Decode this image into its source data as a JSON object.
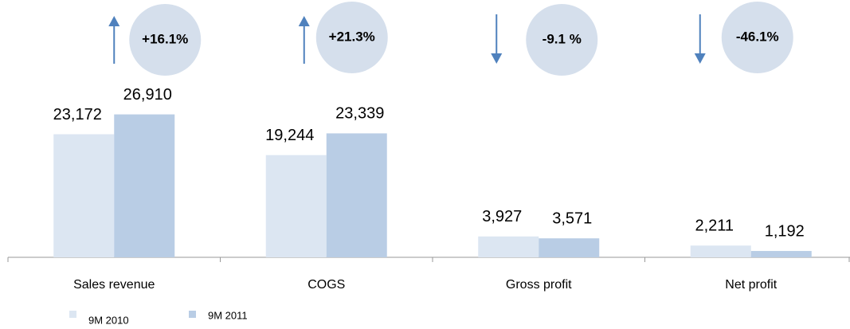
{
  "chart_data": {
    "type": "bar",
    "categories": [
      "Sales revenue",
      "COGS",
      "Gross profit",
      "Net profit"
    ],
    "series": [
      {
        "name": "9M 2010",
        "color": "#dce6f2",
        "values": [
          23172,
          19244,
          3927,
          2211
        ],
        "value_labels": [
          "23,172",
          "19,244",
          "3,927",
          "2,211"
        ]
      },
      {
        "name": "9M 2011",
        "color": "#b9cde5",
        "values": [
          26910,
          23339,
          3571,
          1192
        ],
        "value_labels": [
          "26,910",
          "23,339",
          "3,571",
          "1,192"
        ]
      }
    ],
    "ylim": [
      0,
      30000
    ],
    "annotations": [
      {
        "text": "+16.1%",
        "direction": "up"
      },
      {
        "text": "+21.3%",
        "direction": "up"
      },
      {
        "text": "-9.1 %",
        "direction": "down"
      },
      {
        "text": "-46.1%",
        "direction": "down"
      }
    ],
    "annotation_color": "#4f81bd",
    "bubble_color": "#d5dfec",
    "legend": "bottom-left"
  }
}
